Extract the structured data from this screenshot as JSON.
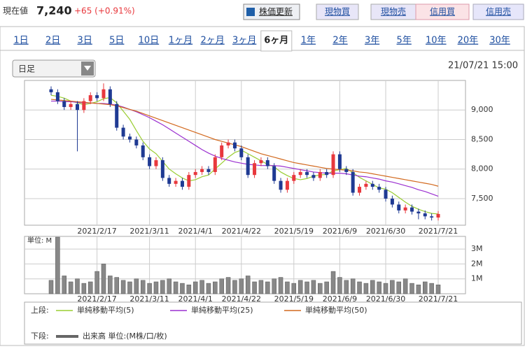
{
  "header": {
    "label": "現在値",
    "price": "7,240",
    "change": "+65 (+0.91%)"
  },
  "buttons": [
    "株価更新",
    "現物買",
    "現物売",
    "信用買",
    "信用売"
  ],
  "tabs": [
    "1日",
    "2日",
    "3日",
    "5日",
    "10日",
    "1ヶ月",
    "2ヶ月",
    "3ヶ月",
    "6ヶ月",
    "1年",
    "2年",
    "3年",
    "5年",
    "10年",
    "20年",
    "30年"
  ],
  "active_tab": 8,
  "dropdown": "日足",
  "timestamp": "21/07/21 15:00",
  "legend_groups": [
    "上段:",
    "下段:"
  ],
  "chart_data": [
    {
      "type": "candlestick",
      "categories": [
        null,
        null,
        null,
        null,
        null,
        null,
        null,
        "2021/2/17",
        null,
        null,
        null,
        null,
        null,
        null,
        null,
        "2021/3/11",
        null,
        null,
        null,
        null,
        null,
        null,
        "2021/4/1",
        null,
        null,
        null,
        null,
        null,
        null,
        "2021/4/22",
        null,
        null,
        null,
        null,
        null,
        null,
        null,
        "2021/5/19",
        null,
        null,
        null,
        null,
        null,
        null,
        "2021/6/9",
        null,
        null,
        null,
        null,
        null,
        null,
        "2021/6/30",
        null,
        null,
        null,
        null,
        null,
        null,
        null,
        "2021/7/21"
      ],
      "open": [
        9350,
        9300,
        9150,
        9050,
        9100,
        9000,
        9150,
        9250,
        9200,
        9350,
        9100,
        8700,
        8550,
        8500,
        8400,
        8200,
        8050,
        8150,
        7850,
        7750,
        7800,
        7700,
        7900,
        7950,
        8000,
        7950,
        8200,
        8400,
        8450,
        8350,
        8200,
        7900,
        8100,
        8150,
        8050,
        7800,
        7650,
        7800,
        7900,
        7950,
        7900,
        7850,
        7950,
        7900,
        8250,
        8000,
        7950,
        7600,
        7700,
        7750,
        7700,
        7650,
        7500,
        7400,
        7300,
        7350,
        7280,
        7250,
        7200,
        7180
      ],
      "high": [
        9400,
        9350,
        9200,
        9150,
        9150,
        9200,
        9300,
        9300,
        9450,
        9400,
        9150,
        8750,
        8600,
        8550,
        8450,
        8250,
        8200,
        8200,
        7900,
        7850,
        7850,
        7950,
        8000,
        8050,
        8050,
        8250,
        8450,
        8500,
        8500,
        8400,
        8250,
        8150,
        8200,
        8200,
        8100,
        7850,
        7850,
        7950,
        8000,
        8000,
        7950,
        8000,
        8000,
        8300,
        8300,
        8050,
        8000,
        7750,
        7800,
        7800,
        7750,
        7700,
        7550,
        7450,
        7400,
        7400,
        7330,
        7300,
        7250,
        7290
      ],
      "low": [
        9250,
        9100,
        9000,
        9000,
        8300,
        8950,
        9100,
        9150,
        9150,
        9050,
        8650,
        8500,
        8450,
        8350,
        8150,
        8000,
        8000,
        7800,
        7700,
        7700,
        7650,
        7650,
        7850,
        7900,
        7900,
        7900,
        8150,
        8350,
        8300,
        8150,
        7850,
        7850,
        8050,
        8000,
        7750,
        7600,
        7600,
        7750,
        7850,
        7850,
        7800,
        7800,
        7850,
        7850,
        7950,
        7900,
        7550,
        7550,
        7650,
        7650,
        7600,
        7450,
        7350,
        7250,
        7250,
        7230,
        7150,
        7150,
        7130,
        7130
      ],
      "close": [
        9300,
        9150,
        9050,
        9100,
        9000,
        9150,
        9250,
        9200,
        9350,
        9100,
        8700,
        8550,
        8500,
        8400,
        8200,
        8050,
        8150,
        7850,
        7750,
        7800,
        7700,
        7900,
        7950,
        8000,
        7950,
        8200,
        8400,
        8450,
        8350,
        8200,
        7900,
        8100,
        8150,
        8050,
        7800,
        7650,
        7800,
        7900,
        7950,
        7900,
        7850,
        7950,
        7900,
        8250,
        8000,
        7950,
        7600,
        7700,
        7750,
        7700,
        7650,
        7500,
        7400,
        7300,
        7350,
        7280,
        7250,
        7200,
        7180,
        7240
      ],
      "up_color": "#e8383d",
      "down_color": "#1f3a93",
      "series": [
        {
          "name": "単純移動平均(5)",
          "color": "#9acd32",
          "values": [
            9250,
            9230,
            9200,
            9150,
            9120,
            9090,
            9110,
            9140,
            9190,
            9210,
            9120,
            8980,
            8840,
            8650,
            8470,
            8340,
            8260,
            8130,
            8000,
            7920,
            7850,
            7800,
            7820,
            7870,
            7900,
            8000,
            8100,
            8200,
            8280,
            8320,
            8260,
            8200,
            8140,
            8080,
            8040,
            7950,
            7890,
            7840,
            7820,
            7840,
            7880,
            7900,
            7910,
            7970,
            7990,
            8010,
            7940,
            7860,
            7800,
            7740,
            7680,
            7660,
            7600,
            7520,
            7440,
            7370,
            7320,
            7280,
            7250,
            7240
          ]
        },
        {
          "name": "単純移動平均(25)",
          "color": "#9b30d0",
          "values": [
            9150,
            9150,
            9140,
            9140,
            9130,
            9120,
            9120,
            9110,
            9110,
            9100,
            9080,
            9050,
            9010,
            8970,
            8920,
            8870,
            8810,
            8750,
            8680,
            8610,
            8540,
            8470,
            8400,
            8330,
            8270,
            8220,
            8180,
            8150,
            8120,
            8100,
            8080,
            8070,
            8060,
            8060,
            8060,
            8050,
            8030,
            8010,
            7990,
            7970,
            7950,
            7940,
            7930,
            7930,
            7930,
            7920,
            7900,
            7880,
            7870,
            7850,
            7830,
            7800,
            7780,
            7750,
            7720,
            7690,
            7650,
            7620,
            7580,
            7540
          ]
        },
        {
          "name": "単純移動平均(50)",
          "color": "#d2691e",
          "values": [
            9180,
            9170,
            9160,
            9150,
            9140,
            9130,
            9120,
            9110,
            9100,
            9090,
            9070,
            9040,
            9010,
            8980,
            8940,
            8900,
            8860,
            8820,
            8780,
            8740,
            8700,
            8660,
            8620,
            8580,
            8540,
            8500,
            8470,
            8440,
            8410,
            8380,
            8340,
            8300,
            8260,
            8230,
            8200,
            8170,
            8140,
            8110,
            8090,
            8070,
            8050,
            8030,
            8010,
            8000,
            7990,
            7980,
            7970,
            7950,
            7940,
            7920,
            7900,
            7880,
            7860,
            7840,
            7820,
            7800,
            7780,
            7760,
            7740,
            7710
          ]
        }
      ],
      "ylim": [
        7050,
        9500
      ],
      "yticks": [
        {
          "value": 7500,
          "label": "7,500"
        },
        {
          "value": 8000,
          "label": "8,000"
        },
        {
          "value": 8500,
          "label": "8,500"
        },
        {
          "value": 9000,
          "label": "9,000"
        }
      ],
      "grid": true
    },
    {
      "type": "bar",
      "unit_label": "単位: M",
      "categories": [
        null,
        null,
        null,
        null,
        null,
        null,
        null,
        "2021/2/17",
        null,
        null,
        null,
        null,
        null,
        null,
        null,
        "2021/3/11",
        null,
        null,
        null,
        null,
        null,
        null,
        "2021/4/1",
        null,
        null,
        null,
        null,
        null,
        null,
        "2021/4/22",
        null,
        null,
        null,
        null,
        null,
        null,
        null,
        "2021/5/19",
        null,
        null,
        null,
        null,
        null,
        null,
        "2021/6/9",
        null,
        null,
        null,
        null,
        null,
        null,
        "2021/6/30",
        null,
        null,
        null,
        null,
        null,
        null,
        null,
        "2021/7/21"
      ],
      "series": [
        {
          "name": "出来高 単位:(M株/口/枚)",
          "color": "#888888",
          "values": [
            0.9,
            3.8,
            1.2,
            0.8,
            1.0,
            0.7,
            0.8,
            1.5,
            2.0,
            1.2,
            1.1,
            0.9,
            0.8,
            1.0,
            0.9,
            0.7,
            0.8,
            0.9,
            1.0,
            0.8,
            0.7,
            0.6,
            0.8,
            0.9,
            0.7,
            0.8,
            1.0,
            1.1,
            0.9,
            1.0,
            1.2,
            0.8,
            0.9,
            0.8,
            1.0,
            1.1,
            0.8,
            0.7,
            0.9,
            0.8,
            0.9,
            0.7,
            0.8,
            1.5,
            1.1,
            0.9,
            1.0,
            0.8,
            0.7,
            0.9,
            0.8,
            0.7,
            0.9,
            0.8,
            1.0,
            0.7,
            0.6,
            0.8,
            0.7,
            0.6
          ]
        }
      ],
      "ylim": [
        0,
        3.85
      ],
      "yticks": [
        {
          "value": 1,
          "label": "1M"
        },
        {
          "value": 2,
          "label": "2M"
        },
        {
          "value": 3,
          "label": "3M"
        }
      ],
      "grid": true
    }
  ]
}
